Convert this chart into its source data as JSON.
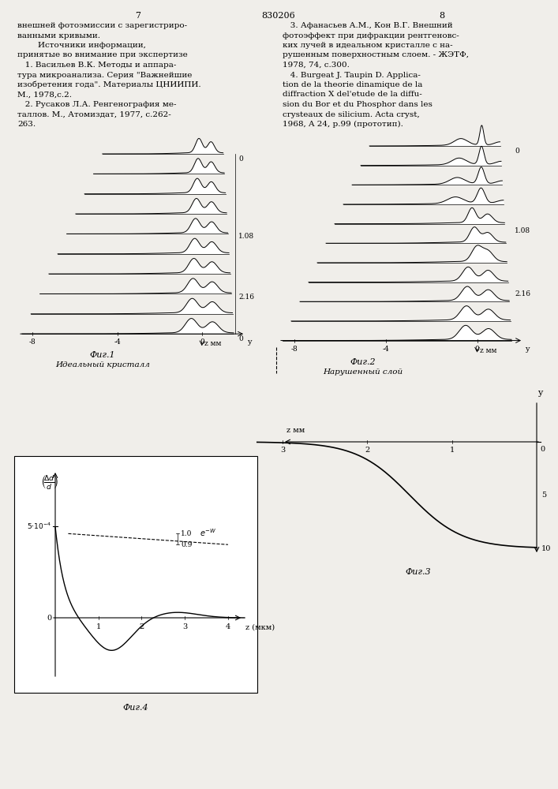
{
  "page_number_left": "7",
  "page_number_center": "830206",
  "page_number_right": "8",
  "text_left": [
    "внешней фотоэмиссии с зарегистриро-",
    "ванными кривыми.",
    "        Источники информации,",
    "принятые во внимание при экспертизе",
    "   1. Васильев В.К. Методы и аппара-",
    "тура микроанализа. Серия \"Важнейшие",
    "изобретения года\". Материалы ЦНИИПИ.",
    "М., 1978,с.2.",
    "   2. Русаков Л.А. Ренгенография ме-",
    "таллов. М., Атомиздат, 1977, с.262-",
    "263."
  ],
  "text_right": [
    "   3. Афанасьев А.М., Кон В.Г. Внешний",
    "фотоэффект при дифракции рентгеновс-",
    "ких лучей в идеальном кристалле с на-",
    "рушенным поверхностным слоем. - ЖЭТФ,",
    "1978, 74, с.300.",
    "   4. Burgeat J. Taupin D. Applica-",
    "tion de la theorie dinamique de la",
    "diffraction X del'etude de la diffu-",
    "sion du Bor et du Phosphor dans les",
    "crysteaux de silicium. Acta cryst,",
    "1968, A 24, p.99 (прототип)."
  ],
  "fig1_caption": "Фиг.1",
  "fig1_sublabel": "Идеальный кристалл",
  "fig2_caption": "Фиг.2",
  "fig2_sublabel": "Нарушенный слой",
  "fig3_caption": "Фиг.3",
  "fig4_caption": "Фиг.4",
  "background_color": "#f0eeea",
  "text_color": "#000000",
  "line_color": "#000000"
}
